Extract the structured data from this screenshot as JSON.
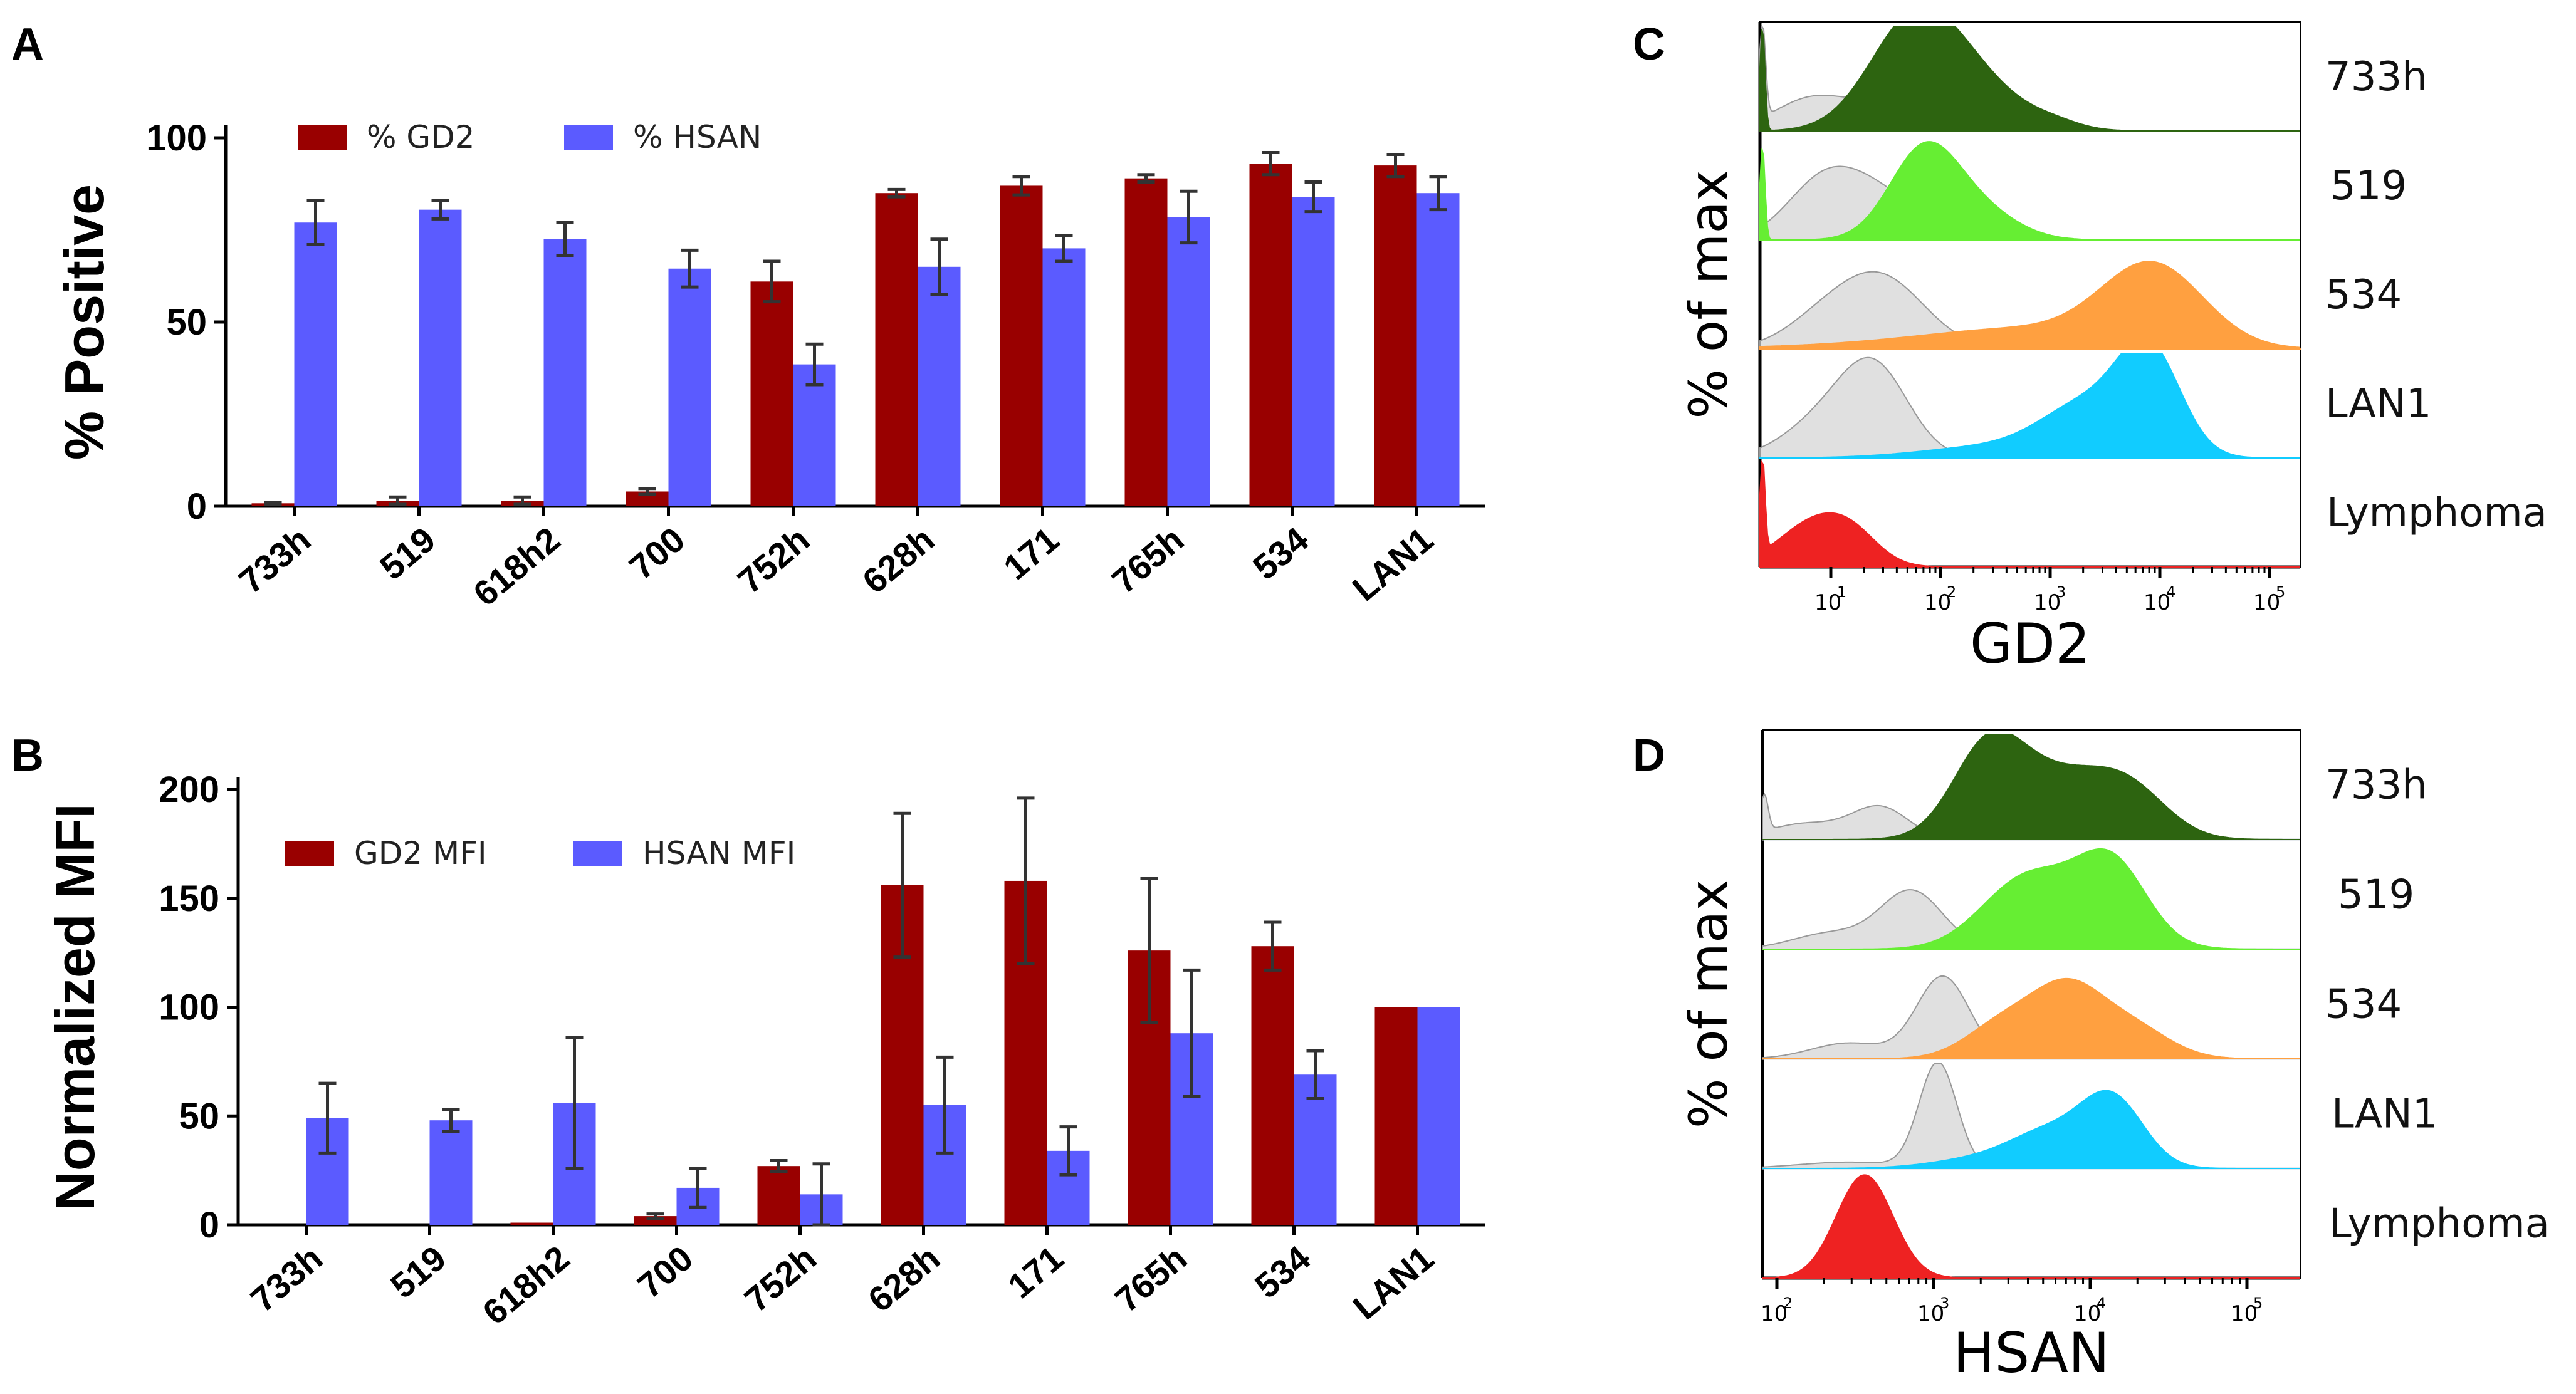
{
  "chart_data": [
    {
      "panel": "A",
      "type": "bar",
      "ylabel": "% Positive",
      "xlabel": "",
      "ylim": [
        0,
        100
      ],
      "yticks": [
        0,
        50,
        100
      ],
      "categories": [
        "733h",
        "519",
        "618h2",
        "700",
        "752h",
        "628h",
        "171",
        "765h",
        "534",
        "LAN1"
      ],
      "series": [
        {
          "name": "% GD2",
          "color": "#990000",
          "values": [
            0.8,
            1.5,
            1.5,
            4,
            61,
            85,
            87,
            89,
            93,
            92.5
          ],
          "errors": [
            0.3,
            1,
            1,
            0.8,
            5.5,
            1,
            2.5,
            1,
            3,
            3
          ]
        },
        {
          "name": "% HSAN",
          "color": "#5b5bff",
          "values": [
            77,
            80.5,
            72.5,
            64.5,
            38.5,
            65,
            70,
            78.5,
            84,
            85
          ],
          "errors": [
            6,
            2.5,
            4.5,
            5,
            5.5,
            7.5,
            3.5,
            7,
            4,
            4.5
          ]
        }
      ],
      "legend": "top-left"
    },
    {
      "panel": "B",
      "type": "bar",
      "ylabel": "Normalized MFI",
      "xlabel": "",
      "ylim": [
        0,
        200
      ],
      "yticks": [
        0,
        50,
        100,
        150,
        200
      ],
      "categories": [
        "733h",
        "519",
        "618h2",
        "700",
        "752h",
        "628h",
        "171",
        "765h",
        "534",
        "LAN1"
      ],
      "series": [
        {
          "name": "GD2 MFI",
          "color": "#990000",
          "values": [
            0,
            0,
            1,
            4,
            27,
            156,
            158,
            126,
            128,
            100
          ],
          "errors": [
            0,
            0,
            0,
            1,
            2.5,
            33,
            38,
            33,
            11,
            0
          ]
        },
        {
          "name": "HSAN MFI",
          "color": "#5b5bff",
          "values": [
            49,
            48,
            56,
            17,
            14,
            55,
            34,
            88,
            69,
            100
          ],
          "errors": [
            16,
            5,
            30,
            9,
            14,
            22,
            11,
            29,
            11,
            0
          ]
        }
      ],
      "legend": "top-left"
    },
    {
      "panel": "C",
      "type": "area",
      "xlabel": "GD2",
      "ylabel": "% of max",
      "xscale": "log",
      "xticks": [
        "10",
        "10",
        "10",
        "10",
        "10"
      ],
      "xtick_exponents": [
        "1",
        "2",
        "3",
        "4",
        "5"
      ],
      "tracks": [
        {
          "label": "733h",
          "color": "#2d6410"
        },
        {
          "label": "519",
          "color": "#66ee33"
        },
        {
          "label": "534",
          "color": "#ffa040"
        },
        {
          "label": "LAN1",
          "color": "#11ccff"
        },
        {
          "label": "Lymphoma",
          "color": "#ee2222"
        }
      ]
    },
    {
      "panel": "D",
      "type": "area",
      "xlabel": "HSAN",
      "ylabel": "% of max",
      "xscale": "log",
      "xticks": [
        "10",
        "10",
        "10",
        "10"
      ],
      "xtick_exponents": [
        "2",
        "3",
        "4",
        "5"
      ],
      "tracks": [
        {
          "label": "733h",
          "color": "#2d6410"
        },
        {
          "label": "519",
          "color": "#66ee33"
        },
        {
          "label": "534",
          "color": "#ffa040"
        },
        {
          "label": "LAN1",
          "color": "#11ccff"
        },
        {
          "label": "Lymphoma",
          "color": "#ee2222"
        }
      ]
    }
  ],
  "panel_labels": [
    "A",
    "B",
    "C",
    "D"
  ]
}
